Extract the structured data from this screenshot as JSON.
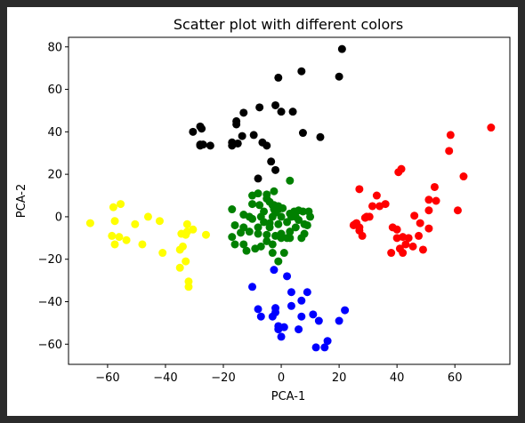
{
  "chart_data": {
    "type": "scatter",
    "title": "Scatter plot with different colors",
    "xlabel": "PCA-1",
    "ylabel": "PCA-2",
    "xlim": [
      -73.5,
      79
    ],
    "ylim": [
      -69.5,
      84.5
    ],
    "xticks": [
      -60,
      -40,
      -20,
      0,
      20,
      40,
      60
    ],
    "yticks": [
      -60,
      -40,
      -20,
      0,
      20,
      40,
      60,
      80
    ],
    "grid": false,
    "series": [
      {
        "color": "#000000",
        "points": [
          [
            21,
            79
          ],
          [
            7,
            68.5
          ],
          [
            -1,
            65.5
          ],
          [
            20,
            66
          ],
          [
            -13,
            49
          ],
          [
            -7.5,
            51.5
          ],
          [
            -2,
            52.5
          ],
          [
            0,
            49.5
          ],
          [
            4,
            49.5
          ],
          [
            -15.5,
            45
          ],
          [
            -15.5,
            43.5
          ],
          [
            -28,
            42.5
          ],
          [
            -27.5,
            41.5
          ],
          [
            -30.5,
            40
          ],
          [
            -9.5,
            38.5
          ],
          [
            -13.5,
            38
          ],
          [
            -17,
            35
          ],
          [
            -15,
            34.5
          ],
          [
            -6.5,
            35
          ],
          [
            -5,
            33.5
          ],
          [
            -28,
            34
          ],
          [
            -28,
            33.5
          ],
          [
            -27,
            34
          ],
          [
            -24.5,
            33.5
          ],
          [
            -17,
            33.5
          ],
          [
            -3.5,
            26
          ],
          [
            -2,
            22
          ],
          [
            -8,
            18
          ],
          [
            7.5,
            39.5
          ],
          [
            13.5,
            37.5
          ]
        ]
      },
      {
        "color": "#ff0000",
        "points": [
          [
            72.5,
            42
          ],
          [
            58.5,
            38.5
          ],
          [
            58,
            31
          ],
          [
            63,
            19
          ],
          [
            61,
            3
          ],
          [
            53,
            14
          ],
          [
            53.5,
            7.5
          ],
          [
            51,
            8
          ],
          [
            51,
            3
          ],
          [
            51,
            -5.5
          ],
          [
            48,
            -3
          ],
          [
            46,
            0.5
          ],
          [
            47.5,
            -9
          ],
          [
            49,
            -15.5
          ],
          [
            40.5,
            21
          ],
          [
            41.5,
            22.5
          ],
          [
            33,
            10
          ],
          [
            36,
            6
          ],
          [
            34,
            5
          ],
          [
            31.5,
            5
          ],
          [
            27,
            13
          ],
          [
            29.5,
            0
          ],
          [
            29,
            -0.5
          ],
          [
            30.5,
            0
          ],
          [
            25.5,
            -3.5
          ],
          [
            26,
            -3
          ],
          [
            25,
            -4
          ],
          [
            27,
            -5
          ],
          [
            27,
            -6.5
          ],
          [
            28,
            -9
          ],
          [
            38.5,
            -5
          ],
          [
            40,
            -6
          ],
          [
            40,
            -10
          ],
          [
            42,
            -9.5
          ],
          [
            43,
            -13
          ],
          [
            44,
            -10
          ],
          [
            41,
            -15
          ],
          [
            38,
            -17
          ],
          [
            42,
            -17
          ],
          [
            45.5,
            -14
          ]
        ]
      },
      {
        "color": "#008000",
        "points": [
          [
            -8,
            11
          ],
          [
            -10,
            10
          ],
          [
            -2.5,
            12
          ],
          [
            -5,
            10.5
          ],
          [
            -5,
            8.5
          ],
          [
            -10,
            6
          ],
          [
            -7.5,
            5.5
          ],
          [
            -3,
            5.5
          ],
          [
            -4,
            7
          ],
          [
            -2.5,
            3.5
          ],
          [
            -17,
            3.5
          ],
          [
            -13,
            1
          ],
          [
            -11,
            0
          ],
          [
            -6,
            2.5
          ],
          [
            -2.5,
            5.5
          ],
          [
            -1,
            5
          ],
          [
            -1,
            3.5
          ],
          [
            -2,
            2
          ],
          [
            0.5,
            4
          ],
          [
            3,
            17
          ],
          [
            3,
            1.5
          ],
          [
            4.5,
            2.5
          ],
          [
            6,
            3
          ],
          [
            7.5,
            2.5
          ],
          [
            9.5,
            2.5
          ],
          [
            10,
            0
          ],
          [
            5,
            0
          ],
          [
            3.5,
            0
          ],
          [
            0,
            0
          ],
          [
            -3,
            0
          ],
          [
            -7,
            0
          ],
          [
            -10,
            -1
          ],
          [
            -6,
            -2.5
          ],
          [
            -4,
            -3
          ],
          [
            -1,
            -3.5
          ],
          [
            2,
            -2.5
          ],
          [
            6,
            -1.5
          ],
          [
            8,
            -3.5
          ],
          [
            9,
            -4
          ],
          [
            5,
            -5
          ],
          [
            3,
            -7
          ],
          [
            0,
            -8
          ],
          [
            -2,
            -9
          ],
          [
            -5,
            -8.5
          ],
          [
            -8,
            -8
          ],
          [
            -11,
            -7
          ],
          [
            -14,
            -7.5
          ],
          [
            -17,
            -9.5
          ],
          [
            -16,
            -13
          ],
          [
            -13,
            -13
          ],
          [
            -12,
            -16
          ],
          [
            -9,
            -15
          ],
          [
            -7,
            -14
          ],
          [
            -5,
            -11.5
          ],
          [
            -3,
            -13
          ],
          [
            -3,
            -17
          ],
          [
            -1,
            -21
          ],
          [
            1,
            -17
          ],
          [
            3,
            -10
          ],
          [
            7,
            -10
          ],
          [
            8,
            -8
          ],
          [
            2,
            -10
          ],
          [
            0,
            -10
          ],
          [
            -4,
            -5
          ],
          [
            -8,
            -5
          ],
          [
            -16,
            -4
          ],
          [
            -13,
            -5
          ]
        ]
      },
      {
        "color": "#ffff00",
        "points": [
          [
            -66,
            -3
          ],
          [
            -58,
            4.5
          ],
          [
            -55.5,
            6
          ],
          [
            -57.5,
            -2
          ],
          [
            -50.5,
            -3.5
          ],
          [
            -46,
            0
          ],
          [
            -42,
            -2
          ],
          [
            -53.5,
            -11
          ],
          [
            -58.5,
            -9
          ],
          [
            -56,
            -9.5
          ],
          [
            -57.5,
            -13
          ],
          [
            -48,
            -13
          ],
          [
            -41,
            -17
          ],
          [
            -32.5,
            -3.5
          ],
          [
            -30.5,
            -6
          ],
          [
            -32.5,
            -7
          ],
          [
            -34.5,
            -8
          ],
          [
            -33,
            -8.5
          ],
          [
            -26,
            -8.5
          ],
          [
            -35,
            -15.5
          ],
          [
            -34,
            -14
          ],
          [
            -33,
            -21
          ],
          [
            -35,
            -24
          ],
          [
            -32,
            -30.5
          ],
          [
            -32,
            -33
          ]
        ]
      },
      {
        "color": "#0000ff",
        "points": [
          [
            -2.5,
            -25
          ],
          [
            2,
            -28
          ],
          [
            -10,
            -33
          ],
          [
            3.5,
            -35.5
          ],
          [
            9,
            -35.5
          ],
          [
            7,
            -39.5
          ],
          [
            -8,
            -43.5
          ],
          [
            -2,
            -43
          ],
          [
            -2,
            -45
          ],
          [
            3.5,
            -42
          ],
          [
            -7,
            -47
          ],
          [
            -3,
            -47
          ],
          [
            7,
            -47
          ],
          [
            11,
            -46
          ],
          [
            13,
            -49
          ],
          [
            20,
            -49
          ],
          [
            22,
            -44
          ],
          [
            -1,
            -51.5
          ],
          [
            -1,
            -53
          ],
          [
            1,
            -52
          ],
          [
            6,
            -53
          ],
          [
            0,
            -56.5
          ],
          [
            16,
            -58.5
          ],
          [
            15,
            -61.5
          ],
          [
            12,
            -61.5
          ]
        ]
      }
    ]
  }
}
